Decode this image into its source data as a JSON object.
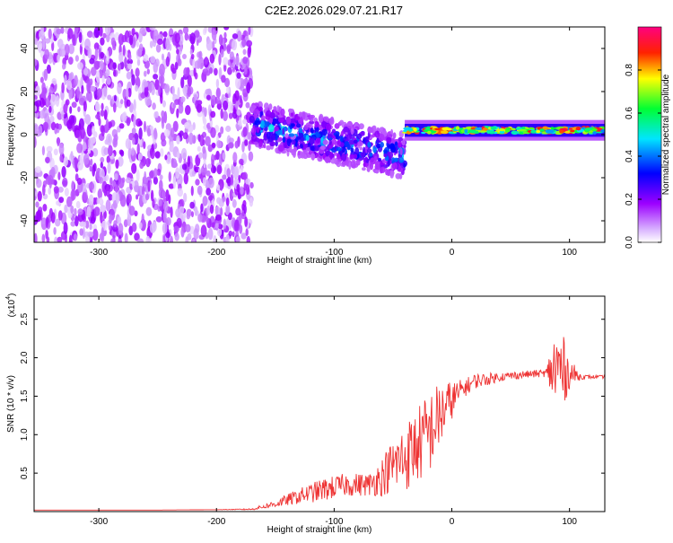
{
  "title": "C2E2.2026.029.07.21.R17",
  "chart_data": [
    {
      "type": "heatmap",
      "title": "C2E2.2026.029.07.21.R17",
      "xlabel": "Height of straight line (km)",
      "ylabel": "Frequency (Hz)",
      "xlim": [
        -355,
        130
      ],
      "ylim": [
        -50,
        50
      ],
      "xticks": [
        -300,
        -200,
        -100,
        0,
        100
      ],
      "yticks": [
        -40,
        -20,
        0,
        20,
        40
      ],
      "grid": false,
      "colorbar": {
        "label": "Normalized spectral amplitude",
        "range": [
          0,
          1
        ],
        "ticks": [
          "0.0",
          "0.2",
          "0.4",
          "0.6",
          "0.8"
        ],
        "colors": [
          "#ffffff",
          "#9c00ff",
          "#0000ff",
          "#00e5ff",
          "#00ff33",
          "#ffff00",
          "#ff2200",
          "#ff0080"
        ]
      },
      "regions": [
        {
          "name": "noise",
          "x_range": [
            -355,
            -170
          ],
          "frequency_range": [
            -50,
            50
          ],
          "amplitude": 0.15
        },
        {
          "name": "transition",
          "x_range": [
            -170,
            -40
          ],
          "frequency_center": [
            5,
            -10
          ],
          "frequency_halfwidth": 10,
          "amplitude": 0.45
        },
        {
          "name": "signal",
          "x_range": [
            -40,
            130
          ],
          "frequency_center": [
            2,
            2
          ],
          "frequency_halfwidth": 3,
          "amplitude": 0.9
        }
      ]
    },
    {
      "type": "line",
      "xlabel": "Height of straight line (km)",
      "ylabel": "SNR (10 * v/v)",
      "yexponent": "(x10",
      "yexponent_power": "4",
      "xlim": [
        -355,
        130
      ],
      "ylim": [
        0,
        2.8
      ],
      "xticks": [
        -300,
        -200,
        -100,
        0,
        100
      ],
      "yticks": [
        "0.5",
        "1.0",
        "1.5",
        "2.0",
        "2.5"
      ],
      "grid": false,
      "series": [
        {
          "color": "#ee3333",
          "x": [
            -355,
            -300,
            -250,
            -200,
            -170,
            -150,
            -130,
            -110,
            -90,
            -70,
            -60,
            -50,
            -40,
            -30,
            -20,
            -10,
            0,
            10,
            20,
            30,
            40,
            60,
            80,
            90,
            100,
            110,
            130
          ],
          "y": [
            0.02,
            0.02,
            0.02,
            0.025,
            0.03,
            0.1,
            0.2,
            0.28,
            0.35,
            0.35,
            0.45,
            0.6,
            0.7,
            0.85,
            1.0,
            1.25,
            1.45,
            1.6,
            1.7,
            1.72,
            1.75,
            1.78,
            1.8,
            1.85,
            1.8,
            1.75,
            1.75
          ],
          "noise": [
            0,
            0,
            0,
            0,
            0.01,
            0.05,
            0.1,
            0.15,
            0.15,
            0.15,
            0.25,
            0.35,
            0.45,
            0.5,
            0.55,
            0.45,
            0.25,
            0.12,
            0.1,
            0.08,
            0.06,
            0.05,
            0.05,
            0.7,
            0.2,
            0.03,
            0.02
          ]
        }
      ]
    }
  ]
}
